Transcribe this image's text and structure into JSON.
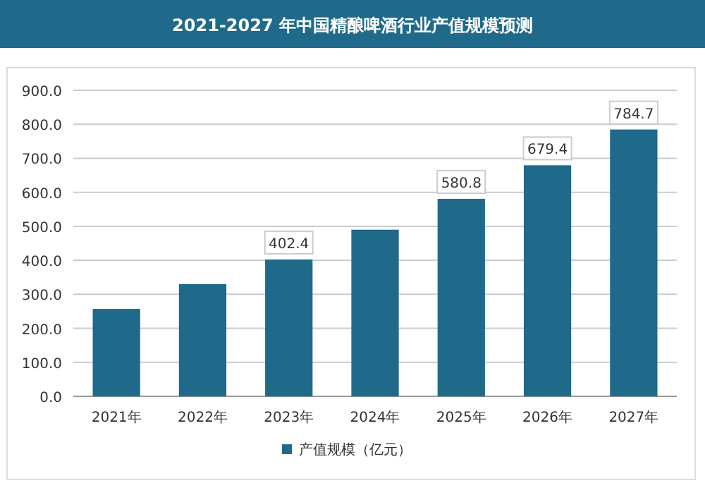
{
  "chart_data": {
    "type": "bar",
    "title": "2021-2027 年中国精酿啤酒行业产值规模预测",
    "categories": [
      "2021年",
      "2022年",
      "2023年",
      "2024年",
      "2025年",
      "2026年",
      "2027年"
    ],
    "series": [
      {
        "name": "产值规模（亿元）",
        "color": "#1f6a8a",
        "values": [
          257,
          330,
          402.4,
          490,
          580.8,
          679.4,
          784.7
        ],
        "value_labels": [
          null,
          null,
          "402.4",
          null,
          "580.8",
          "679.4",
          "784.7"
        ]
      }
    ],
    "ylim": [
      0,
      900
    ],
    "yticks": [
      {
        "value": 0,
        "label": "0.0"
      },
      {
        "value": 100,
        "label": "100.0"
      },
      {
        "value": 200,
        "label": "200.0"
      },
      {
        "value": 300,
        "label": "300.0"
      },
      {
        "value": 400,
        "label": "400.0"
      },
      {
        "value": 500,
        "label": "500.0"
      },
      {
        "value": 600,
        "label": "600.0"
      },
      {
        "value": 700,
        "label": "700.0"
      },
      {
        "value": 800,
        "label": "800.0"
      },
      {
        "value": 900,
        "label": "900.0"
      }
    ],
    "grid": "y",
    "legend": "bottom"
  }
}
